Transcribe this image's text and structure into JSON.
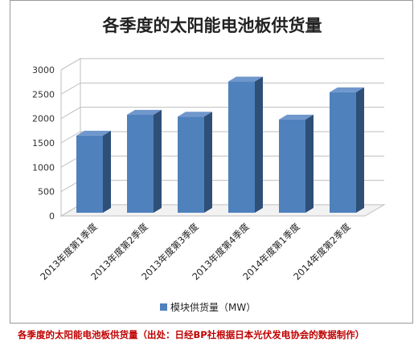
{
  "chart_data": {
    "type": "bar",
    "title": "各季度的太阳能电池板供货量",
    "categories": [
      "2013年度第1季度",
      "2013年度第2季度",
      "2013年度第3季度",
      "2013年度第4季度",
      "2014年度第1季度",
      "2014年度第2季度"
    ],
    "series": [
      {
        "name": "模块供货量（MW）",
        "values": [
          1650,
          2080,
          2040,
          2760,
          1980,
          2540
        ],
        "color": "#4f81bd"
      }
    ],
    "yticks": [
      0,
      500,
      1000,
      1500,
      2000,
      2500,
      3000
    ],
    "ylim": [
      0,
      3000
    ],
    "grid": true,
    "legend": "bottom",
    "style": "3d-columns"
  },
  "caption": "各季度的太阳能电池板供货量（出处：日经BP社根据日本光伏发电协会的数据制作）"
}
